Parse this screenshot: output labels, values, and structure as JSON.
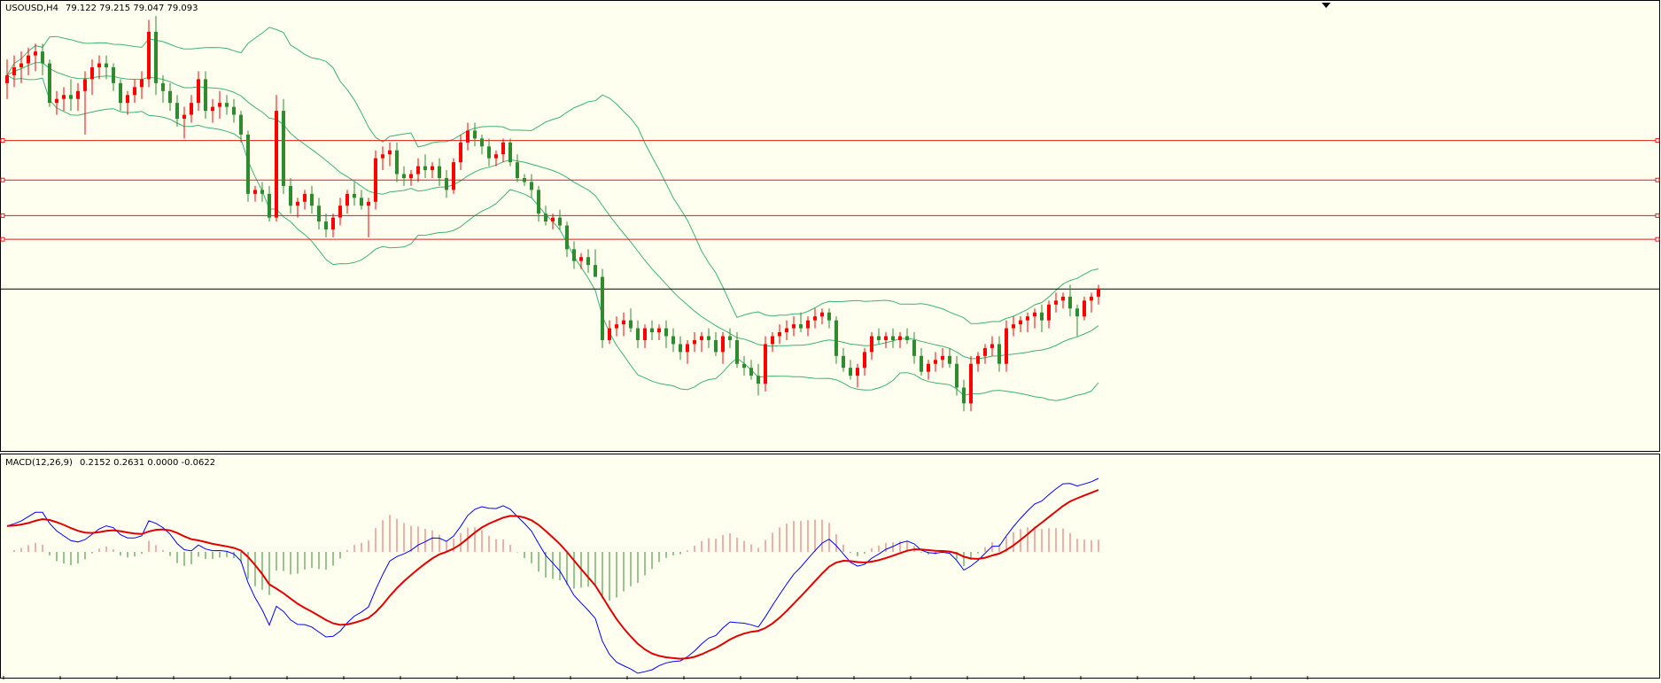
{
  "header": {
    "symbol": "USOUSD,H4",
    "ohlc": "79.122 79.215 79.047 79.093"
  },
  "indicator": {
    "label": "MACD(12,26,9)",
    "values": "0.2152 0.2631 0.0000 -0.0622"
  },
  "colors": {
    "background": "#FFFFF0",
    "bull": "#FF0000",
    "bear": "#2E8B2E",
    "bands": "#3CB371",
    "levels": "#E41B1B",
    "macd_line": "#0000FF",
    "signal_line": "#E00000",
    "hist_pos": "#E06060",
    "hist_neg": "#2E8B2E"
  },
  "chart_data": [
    {
      "type": "candlestick",
      "title": "USOUSD,H4",
      "overlays": [
        "Bollinger Bands (upper, middle, lower)",
        "horizontal level lines"
      ],
      "candles_ohlc_estimated": [
        [
          84.3,
          84.9,
          83.9,
          84.5
        ],
        [
          84.5,
          85.0,
          84.2,
          84.7
        ],
        [
          84.7,
          85.1,
          84.3,
          84.8
        ],
        [
          84.8,
          85.2,
          84.5,
          85.0
        ],
        [
          85.0,
          85.3,
          84.6,
          85.1
        ],
        [
          85.1,
          85.3,
          84.5,
          84.8
        ],
        [
          84.8,
          84.9,
          83.7,
          83.8
        ],
        [
          83.8,
          84.1,
          83.5,
          83.9
        ],
        [
          83.9,
          84.2,
          83.6,
          84.0
        ],
        [
          84.0,
          84.4,
          83.6,
          83.9
        ],
        [
          83.9,
          84.3,
          83.6,
          84.1
        ],
        [
          84.1,
          84.6,
          83.0,
          84.4
        ],
        [
          84.4,
          84.9,
          84.0,
          84.7
        ],
        [
          84.7,
          85.0,
          84.4,
          84.8
        ],
        [
          84.8,
          85.0,
          84.4,
          84.7
        ],
        [
          84.7,
          84.8,
          84.1,
          84.3
        ],
        [
          84.3,
          84.4,
          83.6,
          83.8
        ],
        [
          83.8,
          84.1,
          83.5,
          84.0
        ],
        [
          84.0,
          84.4,
          83.8,
          84.2
        ],
        [
          84.2,
          84.6,
          83.9,
          84.4
        ],
        [
          84.4,
          85.9,
          84.2,
          85.6
        ],
        [
          85.6,
          86.0,
          84.0,
          84.3
        ],
        [
          84.3,
          84.5,
          83.8,
          84.1
        ],
        [
          84.1,
          84.3,
          83.6,
          83.8
        ],
        [
          83.8,
          84.0,
          83.2,
          83.4
        ],
        [
          83.4,
          83.7,
          82.9,
          83.5
        ],
        [
          83.5,
          84.0,
          83.3,
          83.8
        ],
        [
          83.8,
          84.6,
          83.6,
          84.4
        ],
        [
          84.4,
          84.6,
          83.4,
          83.6
        ],
        [
          83.6,
          83.9,
          83.3,
          83.7
        ],
        [
          83.7,
          84.1,
          83.4,
          83.8
        ],
        [
          83.8,
          84.0,
          83.5,
          83.7
        ],
        [
          83.7,
          83.9,
          83.3,
          83.5
        ],
        [
          83.5,
          83.6,
          82.8,
          83.0
        ],
        [
          83.0,
          83.1,
          81.3,
          81.5
        ],
        [
          81.5,
          81.7,
          81.3,
          81.6
        ],
        [
          81.6,
          81.8,
          81.3,
          81.5
        ],
        [
          81.5,
          81.7,
          80.8,
          80.9
        ],
        [
          80.9,
          84.0,
          80.8,
          83.6
        ],
        [
          83.6,
          83.9,
          81.5,
          81.7
        ],
        [
          81.7,
          81.9,
          81.0,
          81.2
        ],
        [
          81.2,
          81.4,
          80.9,
          81.3
        ],
        [
          81.3,
          81.6,
          81.1,
          81.5
        ],
        [
          81.5,
          81.7,
          81.0,
          81.2
        ],
        [
          81.2,
          81.4,
          80.6,
          80.8
        ],
        [
          80.8,
          81.0,
          80.4,
          80.6
        ],
        [
          80.6,
          81.0,
          80.4,
          80.9
        ],
        [
          80.9,
          81.4,
          80.7,
          81.2
        ],
        [
          81.2,
          81.6,
          81.0,
          81.5
        ],
        [
          81.5,
          81.8,
          81.2,
          81.4
        ],
        [
          81.4,
          81.6,
          81.1,
          81.2
        ],
        [
          81.2,
          81.4,
          80.4,
          81.3
        ],
        [
          81.3,
          82.6,
          81.1,
          82.4
        ],
        [
          82.4,
          82.7,
          82.1,
          82.5
        ],
        [
          82.5,
          82.8,
          82.2,
          82.6
        ],
        [
          82.6,
          82.8,
          81.8,
          82.0
        ],
        [
          82.0,
          82.2,
          81.7,
          81.9
        ],
        [
          81.9,
          82.1,
          81.7,
          82.0
        ],
        [
          82.0,
          82.4,
          81.8,
          82.2
        ],
        [
          82.2,
          82.5,
          81.9,
          82.1
        ],
        [
          82.1,
          82.3,
          81.9,
          82.2
        ],
        [
          82.2,
          82.4,
          81.7,
          81.9
        ],
        [
          81.9,
          82.1,
          81.4,
          81.6
        ],
        [
          81.6,
          82.4,
          81.5,
          82.3
        ],
        [
          82.3,
          83.0,
          82.1,
          82.8
        ],
        [
          82.8,
          83.3,
          82.6,
          83.1
        ],
        [
          83.1,
          83.3,
          82.7,
          82.9
        ],
        [
          82.9,
          83.0,
          82.5,
          82.7
        ],
        [
          82.7,
          82.9,
          82.2,
          82.4
        ],
        [
          82.4,
          82.6,
          82.2,
          82.5
        ],
        [
          82.5,
          82.9,
          82.3,
          82.8
        ],
        [
          82.8,
          82.9,
          82.2,
          82.3
        ],
        [
          82.3,
          82.5,
          81.8,
          81.9
        ],
        [
          81.9,
          82.0,
          81.7,
          81.8
        ],
        [
          81.8,
          82.0,
          81.4,
          81.6
        ],
        [
          81.6,
          81.7,
          80.8,
          81.0
        ],
        [
          81.0,
          81.2,
          80.7,
          80.8
        ],
        [
          80.8,
          81.0,
          80.6,
          80.9
        ],
        [
          80.9,
          81.1,
          80.6,
          80.7
        ],
        [
          80.7,
          80.8,
          79.9,
          80.1
        ],
        [
          80.1,
          80.3,
          79.6,
          79.8
        ],
        [
          79.8,
          80.0,
          79.6,
          79.9
        ],
        [
          79.9,
          80.1,
          79.5,
          79.7
        ],
        [
          79.7,
          80.1,
          79.5,
          79.4
        ],
        [
          79.4,
          79.6,
          77.6,
          77.8
        ],
        [
          77.8,
          78.3,
          77.7,
          78.1
        ],
        [
          78.1,
          78.4,
          77.9,
          78.2
        ],
        [
          78.2,
          78.5,
          77.9,
          78.3
        ],
        [
          78.3,
          78.6,
          78.0,
          78.1
        ],
        [
          78.1,
          78.3,
          77.6,
          77.8
        ],
        [
          77.8,
          78.2,
          77.6,
          78.1
        ],
        [
          78.1,
          78.3,
          77.8,
          78.0
        ],
        [
          78.0,
          78.2,
          77.8,
          78.1
        ],
        [
          78.1,
          78.3,
          77.6,
          77.9
        ],
        [
          77.9,
          78.1,
          77.5,
          77.7
        ],
        [
          77.7,
          77.9,
          77.3,
          77.5
        ],
        [
          77.5,
          77.8,
          77.2,
          77.7
        ],
        [
          77.7,
          78.0,
          77.5,
          77.8
        ],
        [
          77.8,
          78.0,
          77.5,
          77.9
        ],
        [
          77.9,
          78.1,
          77.6,
          77.8
        ],
        [
          77.8,
          78.0,
          77.4,
          77.5
        ],
        [
          77.5,
          78.0,
          77.2,
          77.9
        ],
        [
          77.9,
          78.1,
          77.6,
          77.8
        ],
        [
          77.8,
          78.0,
          77.1,
          77.2
        ],
        [
          77.2,
          77.4,
          76.9,
          77.1
        ],
        [
          77.1,
          77.3,
          76.8,
          76.9
        ],
        [
          76.9,
          77.2,
          76.4,
          76.7
        ],
        [
          76.7,
          77.9,
          76.5,
          77.7
        ],
        [
          77.7,
          78.0,
          77.5,
          77.9
        ],
        [
          77.9,
          78.2,
          77.7,
          78.0
        ],
        [
          78.0,
          78.3,
          77.8,
          78.1
        ],
        [
          78.1,
          78.4,
          77.9,
          78.2
        ],
        [
          78.2,
          78.5,
          78.0,
          78.1
        ],
        [
          78.1,
          78.4,
          77.9,
          78.3
        ],
        [
          78.3,
          78.6,
          78.1,
          78.4
        ],
        [
          78.4,
          78.6,
          78.2,
          78.5
        ],
        [
          78.5,
          78.6,
          78.1,
          78.3
        ],
        [
          78.3,
          78.4,
          77.2,
          77.4
        ],
        [
          77.4,
          77.6,
          77.0,
          77.1
        ],
        [
          77.1,
          77.3,
          76.8,
          76.9
        ],
        [
          76.9,
          77.2,
          76.6,
          77.1
        ],
        [
          77.1,
          77.6,
          76.9,
          77.5
        ],
        [
          77.5,
          78.0,
          77.3,
          77.9
        ],
        [
          77.9,
          78.1,
          77.7,
          77.8
        ],
        [
          77.8,
          78.0,
          77.6,
          77.9
        ],
        [
          77.9,
          78.1,
          77.6,
          77.8
        ],
        [
          77.8,
          78.0,
          77.6,
          77.9
        ],
        [
          77.9,
          78.1,
          77.7,
          77.8
        ],
        [
          77.8,
          78.0,
          77.2,
          77.4
        ],
        [
          77.4,
          77.6,
          76.9,
          77.0
        ],
        [
          77.0,
          77.3,
          76.8,
          77.2
        ],
        [
          77.2,
          77.5,
          77.0,
          77.3
        ],
        [
          77.3,
          77.6,
          77.1,
          77.4
        ],
        [
          77.4,
          77.6,
          77.1,
          77.2
        ],
        [
          77.2,
          77.4,
          76.4,
          76.6
        ],
        [
          76.6,
          76.8,
          76.0,
          76.2
        ],
        [
          76.2,
          77.4,
          76.0,
          77.2
        ],
        [
          77.2,
          77.5,
          77.0,
          77.4
        ],
        [
          77.4,
          77.7,
          77.2,
          77.6
        ],
        [
          77.6,
          77.9,
          77.4,
          77.7
        ],
        [
          77.7,
          77.9,
          77.0,
          77.2
        ],
        [
          77.2,
          78.3,
          77.0,
          78.1
        ],
        [
          78.1,
          78.4,
          77.9,
          78.2
        ],
        [
          78.2,
          78.4,
          78.0,
          78.3
        ],
        [
          78.3,
          78.5,
          78.0,
          78.4
        ],
        [
          78.4,
          78.6,
          78.1,
          78.5
        ],
        [
          78.5,
          78.7,
          78.0,
          78.3
        ],
        [
          78.3,
          78.8,
          78.1,
          78.7
        ],
        [
          78.7,
          79.0,
          78.5,
          78.8
        ],
        [
          78.8,
          79.0,
          78.6,
          78.9
        ],
        [
          78.9,
          79.2,
          78.4,
          78.6
        ],
        [
          78.6,
          78.7,
          77.9,
          78.4
        ],
        [
          78.4,
          78.9,
          78.3,
          78.8
        ],
        [
          78.8,
          79.0,
          78.5,
          78.9
        ],
        [
          78.9,
          79.2,
          78.7,
          79.1
        ]
      ],
      "level_lines": [
        82.85,
        81.85,
        80.95,
        80.35
      ],
      "current_price_line": 79.093,
      "y_range": [
        75.2,
        86.0
      ]
    },
    {
      "type": "line",
      "title": "MACD(12,26,9)",
      "series": [
        {
          "name": "MACD(12,26,9)",
          "role": "histogram/main"
        },
        {
          "name": "MACD(12,26,9)",
          "role": "signal"
        }
      ],
      "values_shown": [
        0.2152,
        0.2631,
        0.0,
        -0.0622
      ]
    }
  ]
}
